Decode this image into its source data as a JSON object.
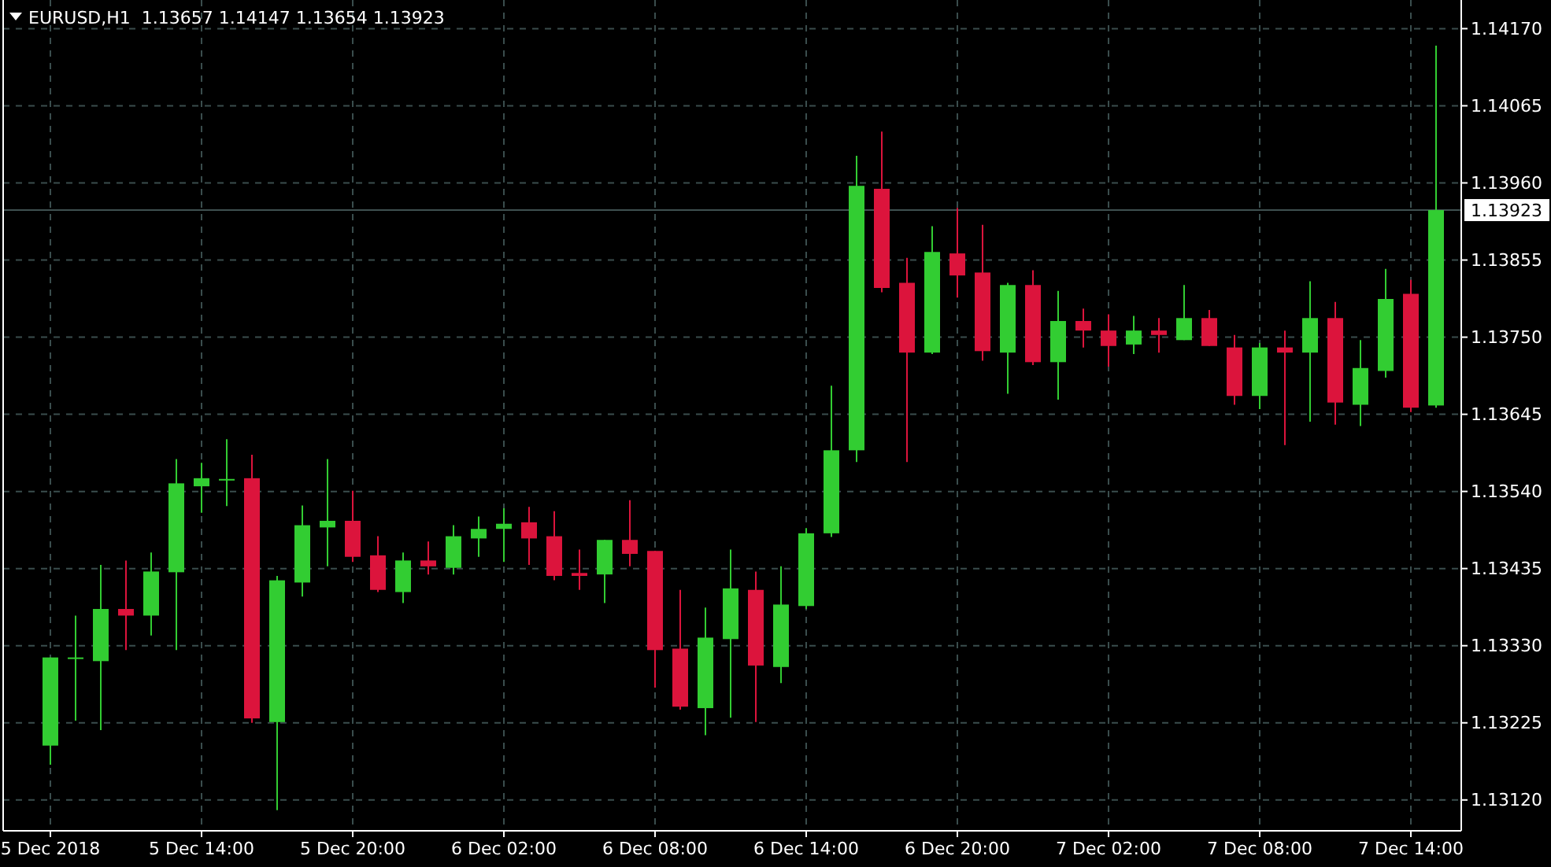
{
  "chart_data": {
    "type": "candlestick",
    "title": "EURUSD,H1  1.13657 1.14147 1.13654 1.13923",
    "categories": [
      "5 Dec 2018",
      null,
      null,
      null,
      null,
      null,
      "5 Dec 14:00",
      null,
      null,
      null,
      null,
      null,
      "5 Dec 20:00",
      null,
      null,
      null,
      null,
      null,
      "6 Dec 02:00",
      null,
      null,
      null,
      null,
      null,
      "6 Dec 08:00",
      null,
      null,
      null,
      null,
      null,
      "6 Dec 14:00",
      null,
      null,
      null,
      null,
      null,
      "6 Dec 20:00",
      null,
      null,
      null,
      null,
      null,
      "7 Dec 02:00",
      null,
      null,
      null,
      null,
      null,
      "7 Dec 08:00",
      null,
      null,
      null,
      null,
      null,
      "7 Dec 14:00",
      null
    ],
    "ohlc": [
      [
        1.13194,
        1.13314,
        1.13168,
        1.13314
      ],
      [
        1.13312,
        1.13371,
        1.13228,
        1.13314
      ],
      [
        1.13309,
        1.1344,
        1.13215,
        1.1338
      ],
      [
        1.1338,
        1.13446,
        1.13324,
        1.13371
      ],
      [
        1.13371,
        1.13457,
        1.13344,
        1.13431
      ],
      [
        1.1343,
        1.13584,
        1.13324,
        1.13551
      ],
      [
        1.13547,
        1.13579,
        1.13511,
        1.13558
      ],
      [
        1.13556,
        1.13611,
        1.1352,
        1.13557
      ],
      [
        1.13558,
        1.1359,
        1.13225,
        1.13231
      ],
      [
        1.13226,
        1.13425,
        1.13106,
        1.13419
      ],
      [
        1.13416,
        1.13521,
        1.13397,
        1.13494
      ],
      [
        1.13491,
        1.13584,
        1.13438,
        1.135
      ],
      [
        1.135,
        1.13541,
        1.13444,
        1.13451
      ],
      [
        1.13453,
        1.13479,
        1.13403,
        1.13406
      ],
      [
        1.13403,
        1.13457,
        1.13388,
        1.13446
      ],
      [
        1.13446,
        1.13472,
        1.13427,
        1.13438
      ],
      [
        1.13436,
        1.13494,
        1.13427,
        1.13479
      ],
      [
        1.13476,
        1.13506,
        1.13451,
        1.13489
      ],
      [
        1.13489,
        1.13517,
        1.13444,
        1.13496
      ],
      [
        1.13498,
        1.13519,
        1.1344,
        1.13476
      ],
      [
        1.13479,
        1.13513,
        1.13419,
        1.13425
      ],
      [
        1.13429,
        1.13461,
        1.13406,
        1.13425
      ],
      [
        1.13427,
        1.13474,
        1.13388,
        1.13474
      ],
      [
        1.13474,
        1.13528,
        1.13438,
        1.13455
      ],
      [
        1.13459,
        1.13459,
        1.13273,
        1.13324
      ],
      [
        1.13326,
        1.13406,
        1.13243,
        1.13247
      ],
      [
        1.13245,
        1.13382,
        1.13208,
        1.13341
      ],
      [
        1.13339,
        1.13461,
        1.13232,
        1.13408
      ],
      [
        1.13406,
        1.13431,
        1.13226,
        1.13303
      ],
      [
        1.13301,
        1.13438,
        1.13279,
        1.13386
      ],
      [
        1.13384,
        1.1349,
        1.1338,
        1.13483
      ],
      [
        1.13483,
        1.13684,
        1.13478,
        1.13596
      ],
      [
        1.13596,
        1.13997,
        1.1358,
        1.13956
      ],
      [
        1.13952,
        1.1403,
        1.13811,
        1.13817
      ],
      [
        1.13824,
        1.13858,
        1.1358,
        1.13729
      ],
      [
        1.13729,
        1.13901,
        1.13727,
        1.13866
      ],
      [
        1.13864,
        1.13926,
        1.13804,
        1.13834
      ],
      [
        1.13838,
        1.13903,
        1.13718,
        1.13731
      ],
      [
        1.13729,
        1.13824,
        1.13673,
        1.13821
      ],
      [
        1.13821,
        1.13841,
        1.13712,
        1.13716
      ],
      [
        1.13716,
        1.13813,
        1.13665,
        1.13772
      ],
      [
        1.13772,
        1.13789,
        1.13736,
        1.13759
      ],
      [
        1.13759,
        1.13781,
        1.1371,
        1.13738
      ],
      [
        1.1374,
        1.13779,
        1.13727,
        1.13759
      ],
      [
        1.13759,
        1.13776,
        1.13729,
        1.13753
      ],
      [
        1.13746,
        1.13821,
        1.13746,
        1.13776
      ],
      [
        1.13776,
        1.13787,
        1.13738,
        1.13738
      ],
      [
        1.13736,
        1.13753,
        1.13658,
        1.1367
      ],
      [
        1.1367,
        1.13742,
        1.13652,
        1.13736
      ],
      [
        1.13736,
        1.13759,
        1.13603,
        1.13729
      ],
      [
        1.13729,
        1.13826,
        1.13635,
        1.13776
      ],
      [
        1.13776,
        1.13798,
        1.13631,
        1.13661
      ],
      [
        1.13658,
        1.13746,
        1.13629,
        1.13708
      ],
      [
        1.13704,
        1.13843,
        1.13695,
        1.13802
      ],
      [
        1.13809,
        1.13828,
        1.13648,
        1.13654
      ],
      [
        1.13657,
        1.14147,
        1.13654,
        1.13923
      ]
    ],
    "colors": [
      "#32cd32",
      "#32cd32",
      "#32cd32",
      "#dc143c",
      "#32cd32",
      "#32cd32",
      "#32cd32",
      "#32cd32",
      "#dc143c",
      "#32cd32",
      "#32cd32",
      "#32cd32",
      "#dc143c",
      "#dc143c",
      "#32cd32",
      "#dc143c",
      "#32cd32",
      "#32cd32",
      "#32cd32",
      "#dc143c",
      "#dc143c",
      "#dc143c",
      "#32cd32",
      "#dc143c",
      "#dc143c",
      "#dc143c",
      "#32cd32",
      "#32cd32",
      "#dc143c",
      "#32cd32",
      "#32cd32",
      "#32cd32",
      "#32cd32",
      "#dc143c",
      "#dc143c",
      "#32cd32",
      "#dc143c",
      "#dc143c",
      "#32cd32",
      "#dc143c",
      "#32cd32",
      "#dc143c",
      "#dc143c",
      "#32cd32",
      "#dc143c",
      "#32cd32",
      "#dc143c",
      "#dc143c",
      "#32cd32",
      "#dc143c",
      "#32cd32",
      "#dc143c",
      "#32cd32",
      "#32cd32",
      "#dc143c",
      "#32cd32"
    ],
    "ylim": [
      1.13078,
      1.14209
    ],
    "yticks": [
      {
        "value": 1.1312,
        "label": "1.13120"
      },
      {
        "value": 1.13225,
        "label": "1.13225"
      },
      {
        "value": 1.1333,
        "label": "1.13330"
      },
      {
        "value": 1.13435,
        "label": "1.13435"
      },
      {
        "value": 1.1354,
        "label": "1.13540"
      },
      {
        "value": 1.13645,
        "label": "1.13645"
      },
      {
        "value": 1.1375,
        "label": "1.13750"
      },
      {
        "value": 1.13855,
        "label": "1.13855"
      },
      {
        "value": 1.1396,
        "label": "1.13960"
      },
      {
        "value": 1.14065,
        "label": "1.14065"
      },
      {
        "value": 1.1417,
        "label": "1.14170"
      }
    ],
    "ref_lines": [
      {
        "axis": "y",
        "value": 1.13923,
        "label": "1.13923",
        "color": "#3f5050"
      }
    ],
    "grid": true
  }
}
